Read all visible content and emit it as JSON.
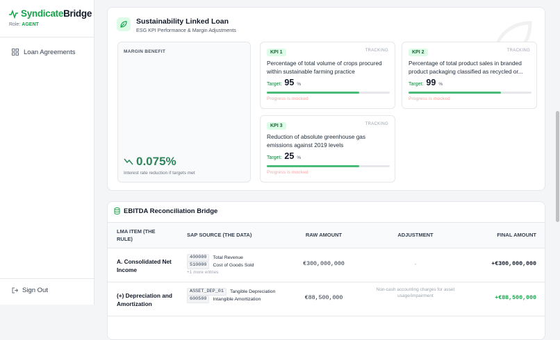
{
  "sidebar": {
    "brand_primary": "Syndicate",
    "brand_secondary": "Bridge",
    "role_label": "Role:",
    "role": "AGENT",
    "nav": [
      "Loan Agreements"
    ],
    "sign_out": "Sign Out"
  },
  "esg_card": {
    "title": "Sustainability Linked Loan",
    "subtitle": "ESG KPI Performance & Margin Adjustments",
    "margin": {
      "label": "MARGIN BENEFIT",
      "value": "0.075%",
      "caption": "Interest rate reduction if targets met"
    },
    "kpis": [
      {
        "tag": "KPI 1",
        "status": "TRACKING",
        "description": "Percentage of total volume of crops procured within sustainable farming practice",
        "target_label": "Target:",
        "target": 95,
        "unit": "%",
        "note": "Progress is mocked"
      },
      {
        "tag": "KPI 2",
        "status": "TRACKING",
        "description": "Percentage of total product sales in branded product packaging classified as recycled or...",
        "target_label": "Target:",
        "target": 99,
        "unit": "%",
        "note": "Progress is mocked"
      },
      {
        "tag": "KPI 3",
        "status": "TRACKING",
        "description": "Reduction of absolute greenhouse gas emissions against 2019 levels",
        "target_label": "Target:",
        "target": 25,
        "unit": "%",
        "note": "Progress is mocked"
      }
    ]
  },
  "ebitda_card": {
    "title": "EBITDA Reconciliation Bridge",
    "columns": [
      "LMA ITEM (THE RULE)",
      "SAP SOURCE (THE DATA)",
      "RAW AMOUNT",
      "ADJUSTMENT",
      "FINAL AMOUNT"
    ],
    "rows": [
      {
        "item": "A. Consolidated Net Income",
        "sources": [
          {
            "code": "400000",
            "name": "Total Revenue"
          },
          {
            "code": "510000",
            "name": "Cost of Goods Sold"
          }
        ],
        "more": "+1 more entries",
        "raw": "€300,000,000",
        "adjustment": "-",
        "final": "+€300,000,000"
      },
      {
        "item": "(+) Depreciation and Amortization",
        "sources": [
          {
            "code": "ASSET_DEP_01",
            "name": "Tangible Depreciation"
          },
          {
            "code": "600500",
            "name": "Intangible Amortization"
          }
        ],
        "raw": "€88,500,000",
        "adjustment": "Non-cash accounting charges for asset usage/impairment",
        "final": "+€88,500,000"
      }
    ]
  }
}
